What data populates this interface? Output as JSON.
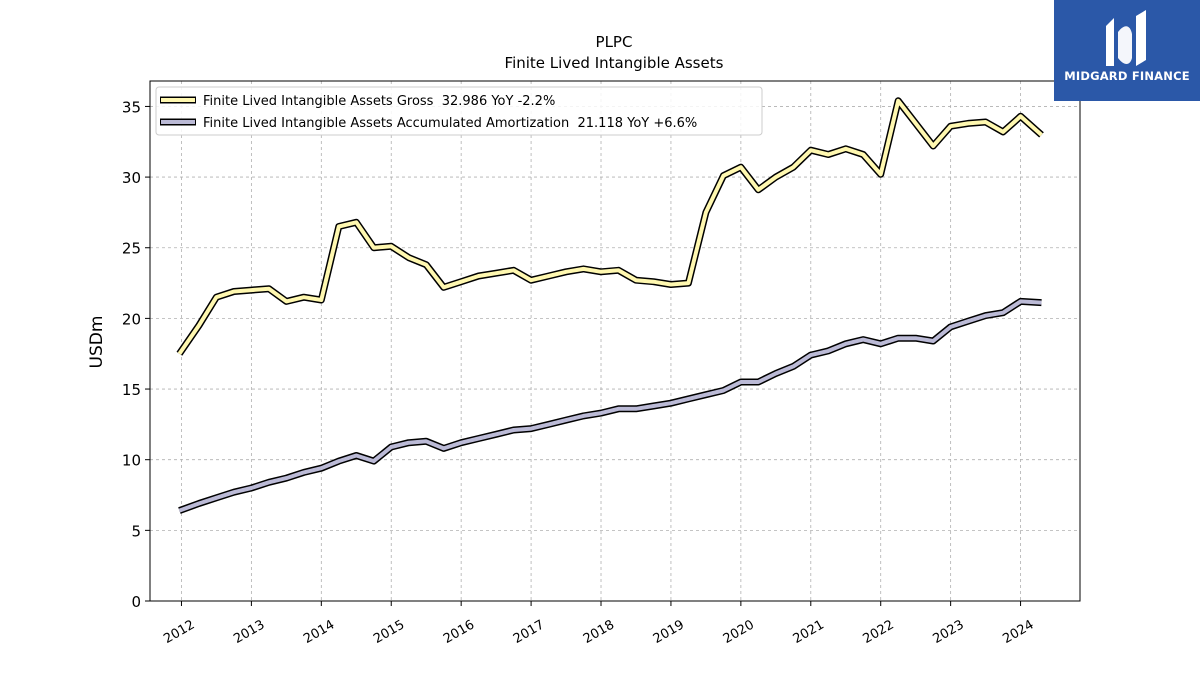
{
  "chart_data": {
    "type": "line",
    "title": "PLPC",
    "subtitle": "Finite Lived Intangible Assets",
    "ylabel": "USDm",
    "xlabel": "",
    "ylim": [
      0,
      36.8
    ],
    "xlim": [
      2011.55,
      2024.85
    ],
    "yticks": [
      0,
      5,
      10,
      15,
      20,
      25,
      30,
      35
    ],
    "xticks": [
      "2012",
      "2013",
      "2014",
      "2015",
      "2016",
      "2017",
      "2018",
      "2019",
      "2020",
      "2021",
      "2022",
      "2023",
      "2024"
    ],
    "grid": true,
    "legend_position": "top-left",
    "series": [
      {
        "name": "Finite Lived Intangible Assets Gross  32.986 YoY -2.2%",
        "color": "#fff8b0",
        "x": [
          2011.97,
          2012.25,
          2012.5,
          2012.75,
          2013.0,
          2013.25,
          2013.5,
          2013.75,
          2014.0,
          2014.25,
          2014.5,
          2014.75,
          2015.0,
          2015.25,
          2015.5,
          2015.75,
          2016.0,
          2016.25,
          2016.5,
          2016.75,
          2017.0,
          2017.25,
          2017.5,
          2017.75,
          2018.0,
          2018.25,
          2018.5,
          2018.75,
          2019.0,
          2019.25,
          2019.5,
          2019.75,
          2020.0,
          2020.25,
          2020.5,
          2020.75,
          2021.0,
          2021.25,
          2021.5,
          2021.75,
          2022.0,
          2022.25,
          2022.5,
          2022.75,
          2023.0,
          2023.25,
          2023.5,
          2023.75,
          2024.0,
          2024.3
        ],
        "values": [
          17.5,
          19.5,
          21.5,
          21.9,
          22.0,
          22.1,
          21.2,
          21.5,
          21.3,
          26.5,
          26.8,
          25.0,
          25.1,
          24.3,
          23.8,
          22.2,
          22.6,
          23.0,
          23.2,
          23.4,
          22.7,
          23.0,
          23.3,
          23.5,
          23.3,
          23.4,
          22.7,
          22.6,
          22.4,
          22.5,
          27.5,
          30.1,
          30.7,
          29.1,
          30.0,
          30.7,
          31.9,
          31.6,
          32.0,
          31.6,
          30.2,
          35.4,
          33.8,
          32.2,
          33.6,
          33.8,
          33.9,
          33.2,
          34.3,
          32.986
        ]
      },
      {
        "name": "Finite Lived Intangible Assets Accumulated Amortization  21.118 YoY +6.6%",
        "color": "#bbbad6",
        "x": [
          2011.97,
          2012.25,
          2012.5,
          2012.75,
          2013.0,
          2013.25,
          2013.5,
          2013.75,
          2014.0,
          2014.25,
          2014.5,
          2014.75,
          2015.0,
          2015.25,
          2015.5,
          2015.75,
          2016.0,
          2016.25,
          2016.5,
          2016.75,
          2017.0,
          2017.25,
          2017.5,
          2017.75,
          2018.0,
          2018.25,
          2018.5,
          2018.75,
          2019.0,
          2019.25,
          2019.5,
          2019.75,
          2020.0,
          2020.25,
          2020.5,
          2020.75,
          2021.0,
          2021.25,
          2021.5,
          2021.75,
          2022.0,
          2022.25,
          2022.5,
          2022.75,
          2023.0,
          2023.25,
          2023.5,
          2023.75,
          2024.0,
          2024.3
        ],
        "values": [
          6.4,
          6.9,
          7.3,
          7.7,
          8.0,
          8.4,
          8.7,
          9.1,
          9.4,
          9.9,
          10.3,
          9.9,
          10.9,
          11.2,
          11.3,
          10.8,
          11.2,
          11.5,
          11.8,
          12.1,
          12.2,
          12.5,
          12.8,
          13.1,
          13.3,
          13.6,
          13.6,
          13.8,
          14.0,
          14.3,
          14.6,
          14.9,
          15.5,
          15.5,
          16.1,
          16.6,
          17.4,
          17.7,
          18.2,
          18.5,
          18.2,
          18.6,
          18.6,
          18.4,
          19.4,
          19.8,
          20.2,
          20.4,
          21.2,
          21.118
        ]
      }
    ]
  },
  "logo": {
    "text": "MIDGARD FINANCE",
    "background": "#2b58a8"
  }
}
